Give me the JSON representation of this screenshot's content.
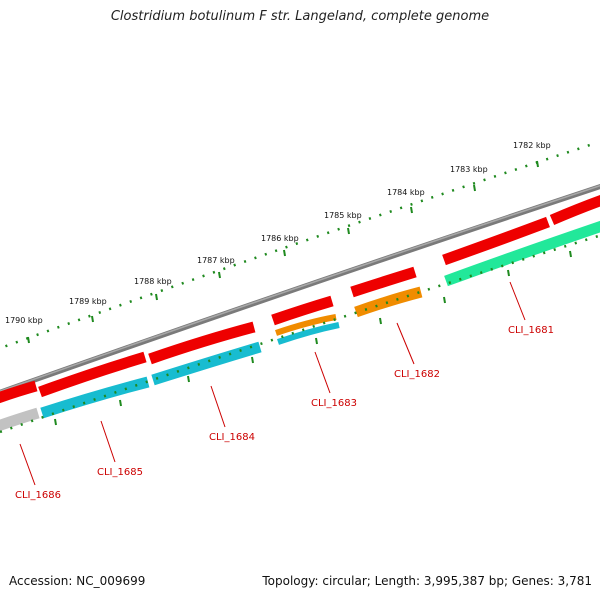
{
  "title": "Clostridium botulinum F str. Langeland, complete genome",
  "footer": {
    "accession": "Accession: NC_009699",
    "topology": "Topology: circular; Length: 3,995,387 bp; Genes: 3,781"
  },
  "colors": {
    "backbone": "#7a7a7a",
    "ticks": "#1f8a1f",
    "forward_strand": "#ee0000",
    "cli_1686": "#c2c2c2",
    "cli_1685": "#18bcd0",
    "cli_1684": "#18bcd0",
    "cli_1683_a": "#f08c00",
    "cli_1683_b": "#18bcd0",
    "cli_1682": "#f08c00",
    "cli_1681": "#22e89a",
    "label": "#cc0000"
  },
  "scale_labels": [
    {
      "id": "1782",
      "text": "1782 kbp"
    },
    {
      "id": "1783",
      "text": "1783 kbp"
    },
    {
      "id": "1784",
      "text": "1784 kbp"
    },
    {
      "id": "1785",
      "text": "1785 kbp"
    },
    {
      "id": "1786",
      "text": "1786 kbp"
    },
    {
      "id": "1787",
      "text": "1787 kbp"
    },
    {
      "id": "1788",
      "text": "1788 kbp"
    },
    {
      "id": "1789",
      "text": "1789 kbp"
    },
    {
      "id": "1790",
      "text": "1790 kbp"
    }
  ],
  "genes": [
    {
      "id": "cli_1681",
      "label": "CLI_1681"
    },
    {
      "id": "cli_1682",
      "label": "CLI_1682"
    },
    {
      "id": "cli_1683",
      "label": "CLI_1683"
    },
    {
      "id": "cli_1684",
      "label": "CLI_1684"
    },
    {
      "id": "cli_1685",
      "label": "CLI_1685"
    },
    {
      "id": "cli_1686",
      "label": "CLI_1686"
    }
  ]
}
